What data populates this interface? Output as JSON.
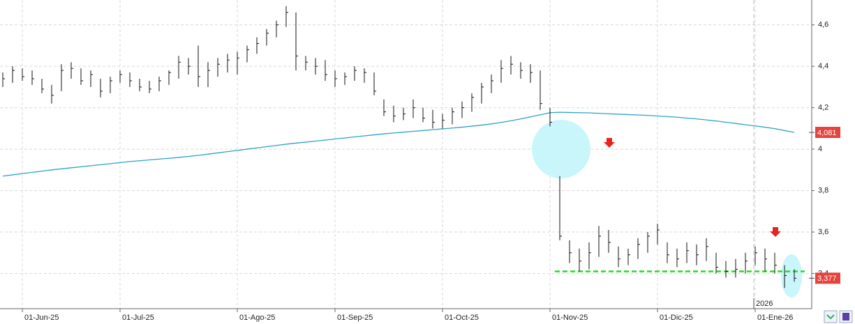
{
  "chart_data": {
    "type": "hlc",
    "categories": [
      null,
      null,
      "01-Jun-25",
      null,
      null,
      null,
      null,
      null,
      null,
      null,
      null,
      null,
      "01-Jul-25",
      null,
      null,
      null,
      null,
      null,
      null,
      null,
      null,
      null,
      null,
      null,
      "01-Ago-25",
      null,
      null,
      null,
      null,
      null,
      null,
      null,
      null,
      null,
      "01-Sep-25",
      null,
      null,
      null,
      null,
      null,
      null,
      null,
      null,
      null,
      null,
      "01-Oct-25",
      null,
      null,
      null,
      null,
      null,
      null,
      null,
      null,
      null,
      null,
      "01-Nov-25",
      null,
      null,
      null,
      null,
      null,
      null,
      null,
      null,
      null,
      null,
      "01-Dic-25",
      null,
      null,
      null,
      null,
      null,
      null,
      null,
      null,
      null,
      "01-Ene-26",
      null,
      null,
      null,
      null
    ],
    "high": [
      4.37,
      4.4,
      4.39,
      4.38,
      4.34,
      4.31,
      4.41,
      4.42,
      4.39,
      4.38,
      4.34,
      4.35,
      4.38,
      4.37,
      4.34,
      4.33,
      4.35,
      4.38,
      4.45,
      4.44,
      4.5,
      4.42,
      4.44,
      4.46,
      4.47,
      4.5,
      4.54,
      4.58,
      4.62,
      4.69,
      4.66,
      4.45,
      4.44,
      4.43,
      4.38,
      4.37,
      4.4,
      4.39,
      4.37,
      4.24,
      4.21,
      4.2,
      4.24,
      4.2,
      4.19,
      4.17,
      4.2,
      4.23,
      4.27,
      4.32,
      4.36,
      4.43,
      4.45,
      4.42,
      4.41,
      4.38,
      4.2,
      3.87,
      3.56,
      3.52,
      3.55,
      3.63,
      3.61,
      3.53,
      3.52,
      3.57,
      3.6,
      3.64,
      3.55,
      3.52,
      3.55,
      3.54,
      3.57,
      3.5,
      3.46,
      3.47,
      3.5,
      3.53,
      3.52,
      3.5,
      3.44,
      3.42
    ],
    "low": [
      4.3,
      4.32,
      4.33,
      4.31,
      4.27,
      4.22,
      4.28,
      4.34,
      4.31,
      4.3,
      4.25,
      4.27,
      4.32,
      4.3,
      4.28,
      4.27,
      4.28,
      4.31,
      4.34,
      4.36,
      4.3,
      4.3,
      4.35,
      4.37,
      4.36,
      4.42,
      4.46,
      4.5,
      4.54,
      4.59,
      4.38,
      4.38,
      4.36,
      4.33,
      4.3,
      4.31,
      4.33,
      4.32,
      4.26,
      4.16,
      4.13,
      4.14,
      4.15,
      4.13,
      4.1,
      4.1,
      4.12,
      4.15,
      4.18,
      4.22,
      4.27,
      4.32,
      4.36,
      4.34,
      4.32,
      4.19,
      4.11,
      3.56,
      3.45,
      3.41,
      3.42,
      3.48,
      3.5,
      3.43,
      3.44,
      3.47,
      3.5,
      3.54,
      3.45,
      3.43,
      3.45,
      3.44,
      3.46,
      3.4,
      3.38,
      3.38,
      3.4,
      3.44,
      3.41,
      3.4,
      3.33,
      3.36
    ],
    "close": [
      4.34,
      4.38,
      4.35,
      4.34,
      4.29,
      4.26,
      4.38,
      4.39,
      4.33,
      4.36,
      4.28,
      4.33,
      4.36,
      4.33,
      4.3,
      4.29,
      4.33,
      4.37,
      4.42,
      4.4,
      4.35,
      4.38,
      4.41,
      4.43,
      4.44,
      4.48,
      4.51,
      4.56,
      4.6,
      4.66,
      4.45,
      4.42,
      4.4,
      4.36,
      4.34,
      4.35,
      4.38,
      4.37,
      4.28,
      4.18,
      4.16,
      4.17,
      4.2,
      4.15,
      4.13,
      4.14,
      4.18,
      4.2,
      4.25,
      4.3,
      4.33,
      4.39,
      4.41,
      4.38,
      4.37,
      4.22,
      4.13,
      3.58,
      3.5,
      3.46,
      3.5,
      3.58,
      3.55,
      3.47,
      3.49,
      3.54,
      3.58,
      3.61,
      3.49,
      3.47,
      3.51,
      3.49,
      3.53,
      3.43,
      3.41,
      3.42,
      3.46,
      3.5,
      3.47,
      3.44,
      3.39,
      3.377
    ],
    "bar_color": "#111111",
    "moving_average": {
      "color": "#2aa3c6",
      "values": [
        3.87,
        3.876,
        3.882,
        3.888,
        3.894,
        3.9,
        3.905,
        3.91,
        3.915,
        3.92,
        3.925,
        3.93,
        3.935,
        3.94,
        3.944,
        3.948,
        3.952,
        3.956,
        3.96,
        3.965,
        3.97,
        3.976,
        3.982,
        3.988,
        3.994,
        4.0,
        4.006,
        4.012,
        4.018,
        4.024,
        4.029,
        4.034,
        4.039,
        4.044,
        4.049,
        4.054,
        4.059,
        4.064,
        4.069,
        4.074,
        4.078,
        4.082,
        4.086,
        4.09,
        4.094,
        4.098,
        4.102,
        4.106,
        4.111,
        4.116,
        4.122,
        4.129,
        4.137,
        4.146,
        4.156,
        4.166,
        4.176,
        4.178,
        4.177,
        4.176,
        4.175,
        4.173,
        4.171,
        4.169,
        4.167,
        4.165,
        4.163,
        4.16,
        4.157,
        4.154,
        4.15,
        4.146,
        4.141,
        4.136,
        4.13,
        4.124,
        4.118,
        4.112,
        4.106,
        4.099,
        4.09,
        4.081
      ]
    },
    "support_line": {
      "value": 3.41,
      "color": "#22dd22"
    },
    "price_tags": [
      {
        "value": 4.081,
        "label": "4,081"
      },
      {
        "value": 3.377,
        "label": "3,377"
      }
    ],
    "year_label": "2026",
    "ylim": [
      3.23,
      4.72
    ],
    "yticks": [
      {
        "value": 3.4,
        "label": "3,4"
      },
      {
        "value": 3.6,
        "label": "3,6"
      },
      {
        "value": 3.8,
        "label": "3,8"
      },
      4,
      {
        "value": 4.2,
        "label": "4,2"
      },
      {
        "value": 4.4,
        "label": "4,4"
      },
      {
        "value": 4.6,
        "label": "4,6"
      }
    ],
    "grid": true
  }
}
